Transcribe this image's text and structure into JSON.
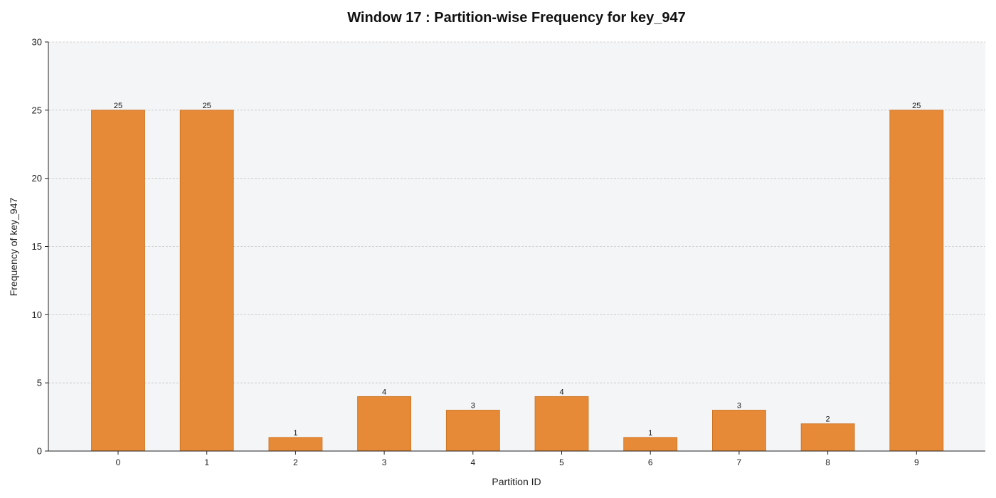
{
  "chart_data": {
    "type": "bar",
    "title": "Window 17 : Partition-wise Frequency for key_947",
    "xlabel": "Partition ID",
    "ylabel": "Frequency of key_947",
    "categories": [
      "0",
      "1",
      "2",
      "3",
      "4",
      "5",
      "6",
      "7",
      "8",
      "9"
    ],
    "values": [
      25,
      25,
      1,
      4,
      3,
      4,
      1,
      3,
      2,
      25
    ],
    "ylim": [
      0,
      30
    ],
    "yticks": [
      0,
      5,
      10,
      15,
      20,
      25,
      30
    ],
    "grid": true,
    "data_labels": true,
    "colors": {
      "bar_fill": "#e68a38",
      "bar_edge": "#c8701f",
      "plot_background": "#f4f5f7",
      "grid": "#c8c8c8",
      "axis": "#222222"
    }
  }
}
